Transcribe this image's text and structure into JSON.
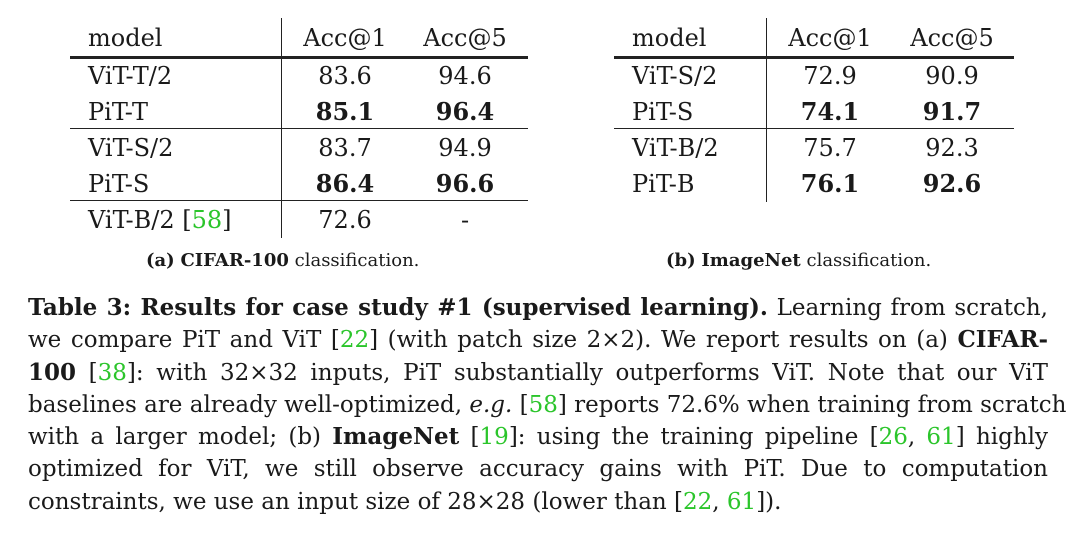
{
  "table_a": {
    "headers": [
      "model",
      "Acc@1",
      "Acc@5"
    ],
    "rows": [
      {
        "model": "ViT-T/2",
        "acc1": "83.6",
        "acc5": "94.6",
        "bold": false
      },
      {
        "model": "PiT-T",
        "acc1": "85.1",
        "acc5": "96.4",
        "bold": true
      },
      {
        "model": "ViT-S/2",
        "acc1": "83.7",
        "acc5": "94.9",
        "bold": false
      },
      {
        "model": "PiT-S",
        "acc1": "86.4",
        "acc5": "96.6",
        "bold": true
      },
      {
        "model": "ViT-B/2 ",
        "ref": "58",
        "acc1": "72.6",
        "acc5": "-",
        "bold": false
      }
    ],
    "caption_prefix": "(a)",
    "caption_bold": "CIFAR-100",
    "caption_rest": "classification."
  },
  "table_b": {
    "headers": [
      "model",
      "Acc@1",
      "Acc@5"
    ],
    "rows": [
      {
        "model": "ViT-S/2",
        "acc1": "72.9",
        "acc5": "90.9",
        "bold": false
      },
      {
        "model": "PiT-S",
        "acc1": "74.1",
        "acc5": "91.7",
        "bold": true
      },
      {
        "model": "ViT-B/2",
        "acc1": "75.7",
        "acc5": "92.3",
        "bold": false
      },
      {
        "model": "PiT-B",
        "acc1": "76.1",
        "acc5": "92.6",
        "bold": true
      }
    ],
    "caption_prefix": "(b)",
    "caption_bold": "ImageNet",
    "caption_rest": "classification."
  },
  "caption_lines": [
    [
      {
        "t": "Table 3: Results for case study #1 (supervised learning).",
        "s": "b"
      },
      {
        "t": " Learning from scratch,"
      }
    ],
    [
      {
        "t": "we compare PiT and ViT ["
      },
      {
        "t": "22",
        "s": "ref"
      },
      {
        "t": "] (with patch size 2×2). We report results on (a) "
      },
      {
        "t": "CIFAR-",
        "s": "b"
      }
    ],
    [
      {
        "t": "100",
        "s": "b"
      },
      {
        "t": " ["
      },
      {
        "t": "38",
        "s": "ref"
      },
      {
        "t": "]: with 32×32 inputs, PiT substantially outperforms ViT. Note that our ViT"
      }
    ],
    [
      {
        "t": "baselines are already well-optimized, "
      },
      {
        "t": "e.g.",
        "s": "i"
      },
      {
        "t": " ["
      },
      {
        "t": "58",
        "s": "ref"
      },
      {
        "t": "] reports 72.6% when training from scratch"
      }
    ],
    [
      {
        "t": "with a larger model; (b) "
      },
      {
        "t": "ImageNet",
        "s": "b"
      },
      {
        "t": " ["
      },
      {
        "t": "19",
        "s": "ref"
      },
      {
        "t": "]: using the training pipeline ["
      },
      {
        "t": "26",
        "s": "ref"
      },
      {
        "t": ", "
      },
      {
        "t": "61",
        "s": "ref"
      },
      {
        "t": "] highly"
      }
    ],
    [
      {
        "t": "optimized for ViT, we still observe accuracy gains with PiT. Due to computation"
      }
    ],
    [
      {
        "t": "constraints, we use an input size of 28×28 (lower than ["
      },
      {
        "t": "22",
        "s": "ref"
      },
      {
        "t": ", "
      },
      {
        "t": "61",
        "s": "ref"
      },
      {
        "t": "])."
      }
    ]
  ]
}
